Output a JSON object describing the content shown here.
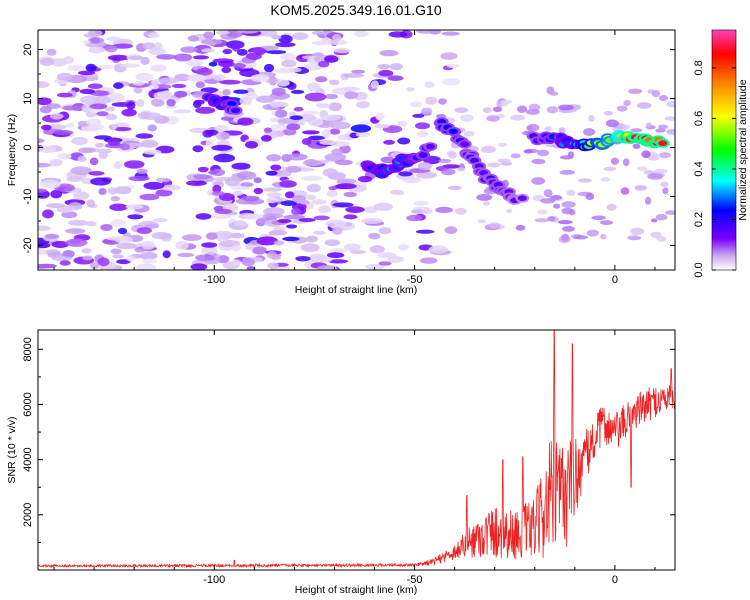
{
  "title": "KOM5.2025.349.16.01.G10",
  "chart_data": [
    {
      "type": "heatmap",
      "title": "KOM5.2025.349.16.01.G10",
      "xlabel": "Height of straight line (km)",
      "ylabel": "Frequency (Hz)",
      "xlim": [
        -144,
        15
      ],
      "ylim": [
        -25,
        24
      ],
      "xticks": [
        -100,
        -50,
        0
      ],
      "yticks": [
        -20,
        -10,
        0,
        10,
        20
      ],
      "colorbar": {
        "label": "Normalized spectral amplitude",
        "range": [
          0,
          0.95
        ],
        "ticks": [
          0.0,
          0.2,
          0.4,
          0.6,
          0.8
        ],
        "colormap": [
          "#ffffff",
          "#b58ce8",
          "#7a00ff",
          "#0000ff",
          "#00ffff",
          "#00ff00",
          "#ffff00",
          "#ff8000",
          "#ff0000",
          "#ff40c0"
        ]
      },
      "features": [
        {
          "name": "background scatter",
          "x_range": [
            -144,
            -40
          ],
          "freq_range": [
            -25,
            24
          ],
          "level": 0.1
        },
        {
          "name": "blob A",
          "points": [
            [
              -101,
              10.5,
              0.25
            ],
            [
              -97,
              9,
              0.3
            ],
            [
              -95,
              8,
              0.2
            ]
          ]
        },
        {
          "name": "descending streak 1",
          "points": [
            [
              -62,
              -4,
              0.25
            ],
            [
              -58,
              -5,
              0.3
            ],
            [
              -54,
              -3,
              0.3
            ],
            [
              -50,
              -2,
              0.25
            ],
            [
              -46,
              0,
              0.2
            ]
          ]
        },
        {
          "name": "descending streak 2",
          "points": [
            [
              -44,
              5,
              0.22
            ],
            [
              -40,
              3,
              0.22
            ],
            [
              -36,
              -2,
              0.2
            ],
            [
              -32,
              -6,
              0.2
            ],
            [
              -28,
              -9,
              0.2
            ],
            [
              -23,
              -11,
              0.15
            ]
          ]
        },
        {
          "name": "carrier line",
          "points": [
            [
              -20,
              2,
              0.2
            ],
            [
              -14,
              1.5,
              0.25
            ],
            [
              -10,
              1,
              0.35
            ],
            [
              -5,
              0.5,
              0.6
            ],
            [
              0,
              2,
              0.7
            ],
            [
              3,
              2.5,
              0.9
            ],
            [
              8,
              1,
              0.9
            ],
            [
              12,
              0.8,
              0.9
            ]
          ]
        }
      ]
    },
    {
      "type": "line",
      "xlabel": "Height of straight line (km)",
      "ylabel": "SNR (10 * v/v)",
      "xlim": [
        -144,
        15
      ],
      "ylim": [
        0,
        8700
      ],
      "xticks": [
        -100,
        -50,
        0
      ],
      "yticks": [
        2000,
        4000,
        6000,
        8000
      ],
      "series": [
        {
          "name": "SNR",
          "color": "#ee2222",
          "envelope": [
            {
              "x": -144,
              "base": 150,
              "amp": 80
            },
            {
              "x": -95,
              "base": 160,
              "amp": 100
            },
            {
              "x": -50,
              "base": 180,
              "amp": 100
            },
            {
              "x": -45,
              "base": 300,
              "amp": 250
            },
            {
              "x": -40,
              "base": 600,
              "amp": 600
            },
            {
              "x": -35,
              "base": 1000,
              "amp": 1400
            },
            {
              "x": -30,
              "base": 1200,
              "amp": 2000
            },
            {
              "x": -25,
              "base": 1100,
              "amp": 1800
            },
            {
              "x": -20,
              "base": 1300,
              "amp": 2200
            },
            {
              "x": -16,
              "base": 2200,
              "amp": 4500
            },
            {
              "x": -12,
              "base": 2400,
              "amp": 4000
            },
            {
              "x": -8,
              "base": 3700,
              "amp": 2000
            },
            {
              "x": -3,
              "base": 5200,
              "amp": 1400
            },
            {
              "x": 0,
              "base": 4800,
              "amp": 1500
            },
            {
              "x": 5,
              "base": 5600,
              "amp": 1300
            },
            {
              "x": 10,
              "base": 6000,
              "amp": 1200
            },
            {
              "x": 15,
              "base": 6200,
              "amp": 1000
            }
          ],
          "peaks": [
            {
              "x": -15.2,
              "y": 8750
            },
            {
              "x": -10.6,
              "y": 8200
            },
            {
              "x": -23,
              "y": 4100
            },
            {
              "x": -28,
              "y": 4000
            },
            {
              "x": 14,
              "y": 7300
            },
            {
              "x": 4,
              "y": 3000
            },
            {
              "x": -37,
              "y": 2700
            },
            {
              "x": -95,
              "y": 350
            }
          ]
        }
      ]
    }
  ]
}
